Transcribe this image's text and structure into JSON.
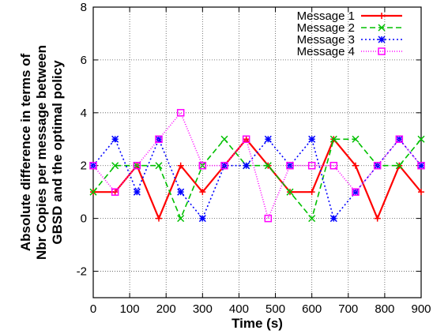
{
  "chart_data": {
    "type": "line",
    "title": "",
    "xlabel": "Time (s)",
    "ylabel": [
      "Absolute difference in terms of",
      "Nbr Copies per message between",
      "GBSD and the optimal policy"
    ],
    "xlim": [
      0,
      900
    ],
    "ylim": [
      -3,
      8
    ],
    "xticks": [
      0,
      100,
      200,
      300,
      400,
      500,
      600,
      700,
      800,
      900
    ],
    "yticks": [
      -2,
      0,
      2,
      4,
      6,
      8
    ],
    "grid": true,
    "legend_position": "top-right",
    "x": [
      0,
      60,
      120,
      180,
      240,
      300,
      360,
      420,
      480,
      540,
      600,
      660,
      720,
      780,
      840,
      900
    ],
    "series": [
      {
        "name": "Message 1",
        "color": "#ff0000",
        "dash": "",
        "marker": "plus",
        "values": [
          1,
          1,
          2,
          0,
          2,
          1,
          2,
          3,
          2,
          1,
          1,
          3,
          2,
          0,
          2,
          1
        ]
      },
      {
        "name": "Message 2",
        "color": "#00c000",
        "dash": "7,4",
        "marker": "cross",
        "values": [
          1,
          2,
          2,
          2,
          0,
          2,
          3,
          2,
          2,
          1,
          0,
          3,
          3,
          2,
          2,
          3
        ]
      },
      {
        "name": "Message 3",
        "color": "#0000ff",
        "dash": "2,3",
        "marker": "star",
        "values": [
          2,
          3,
          1,
          3,
          1,
          0,
          2,
          2,
          3,
          2,
          3,
          0,
          1,
          2,
          3,
          2
        ]
      },
      {
        "name": "Message 4",
        "color": "#ff00ff",
        "dash": "1,2",
        "marker": "square",
        "values": [
          2,
          1,
          2,
          3,
          4,
          2,
          2,
          3,
          0,
          2,
          2,
          2,
          1,
          2,
          3,
          2
        ]
      }
    ]
  }
}
